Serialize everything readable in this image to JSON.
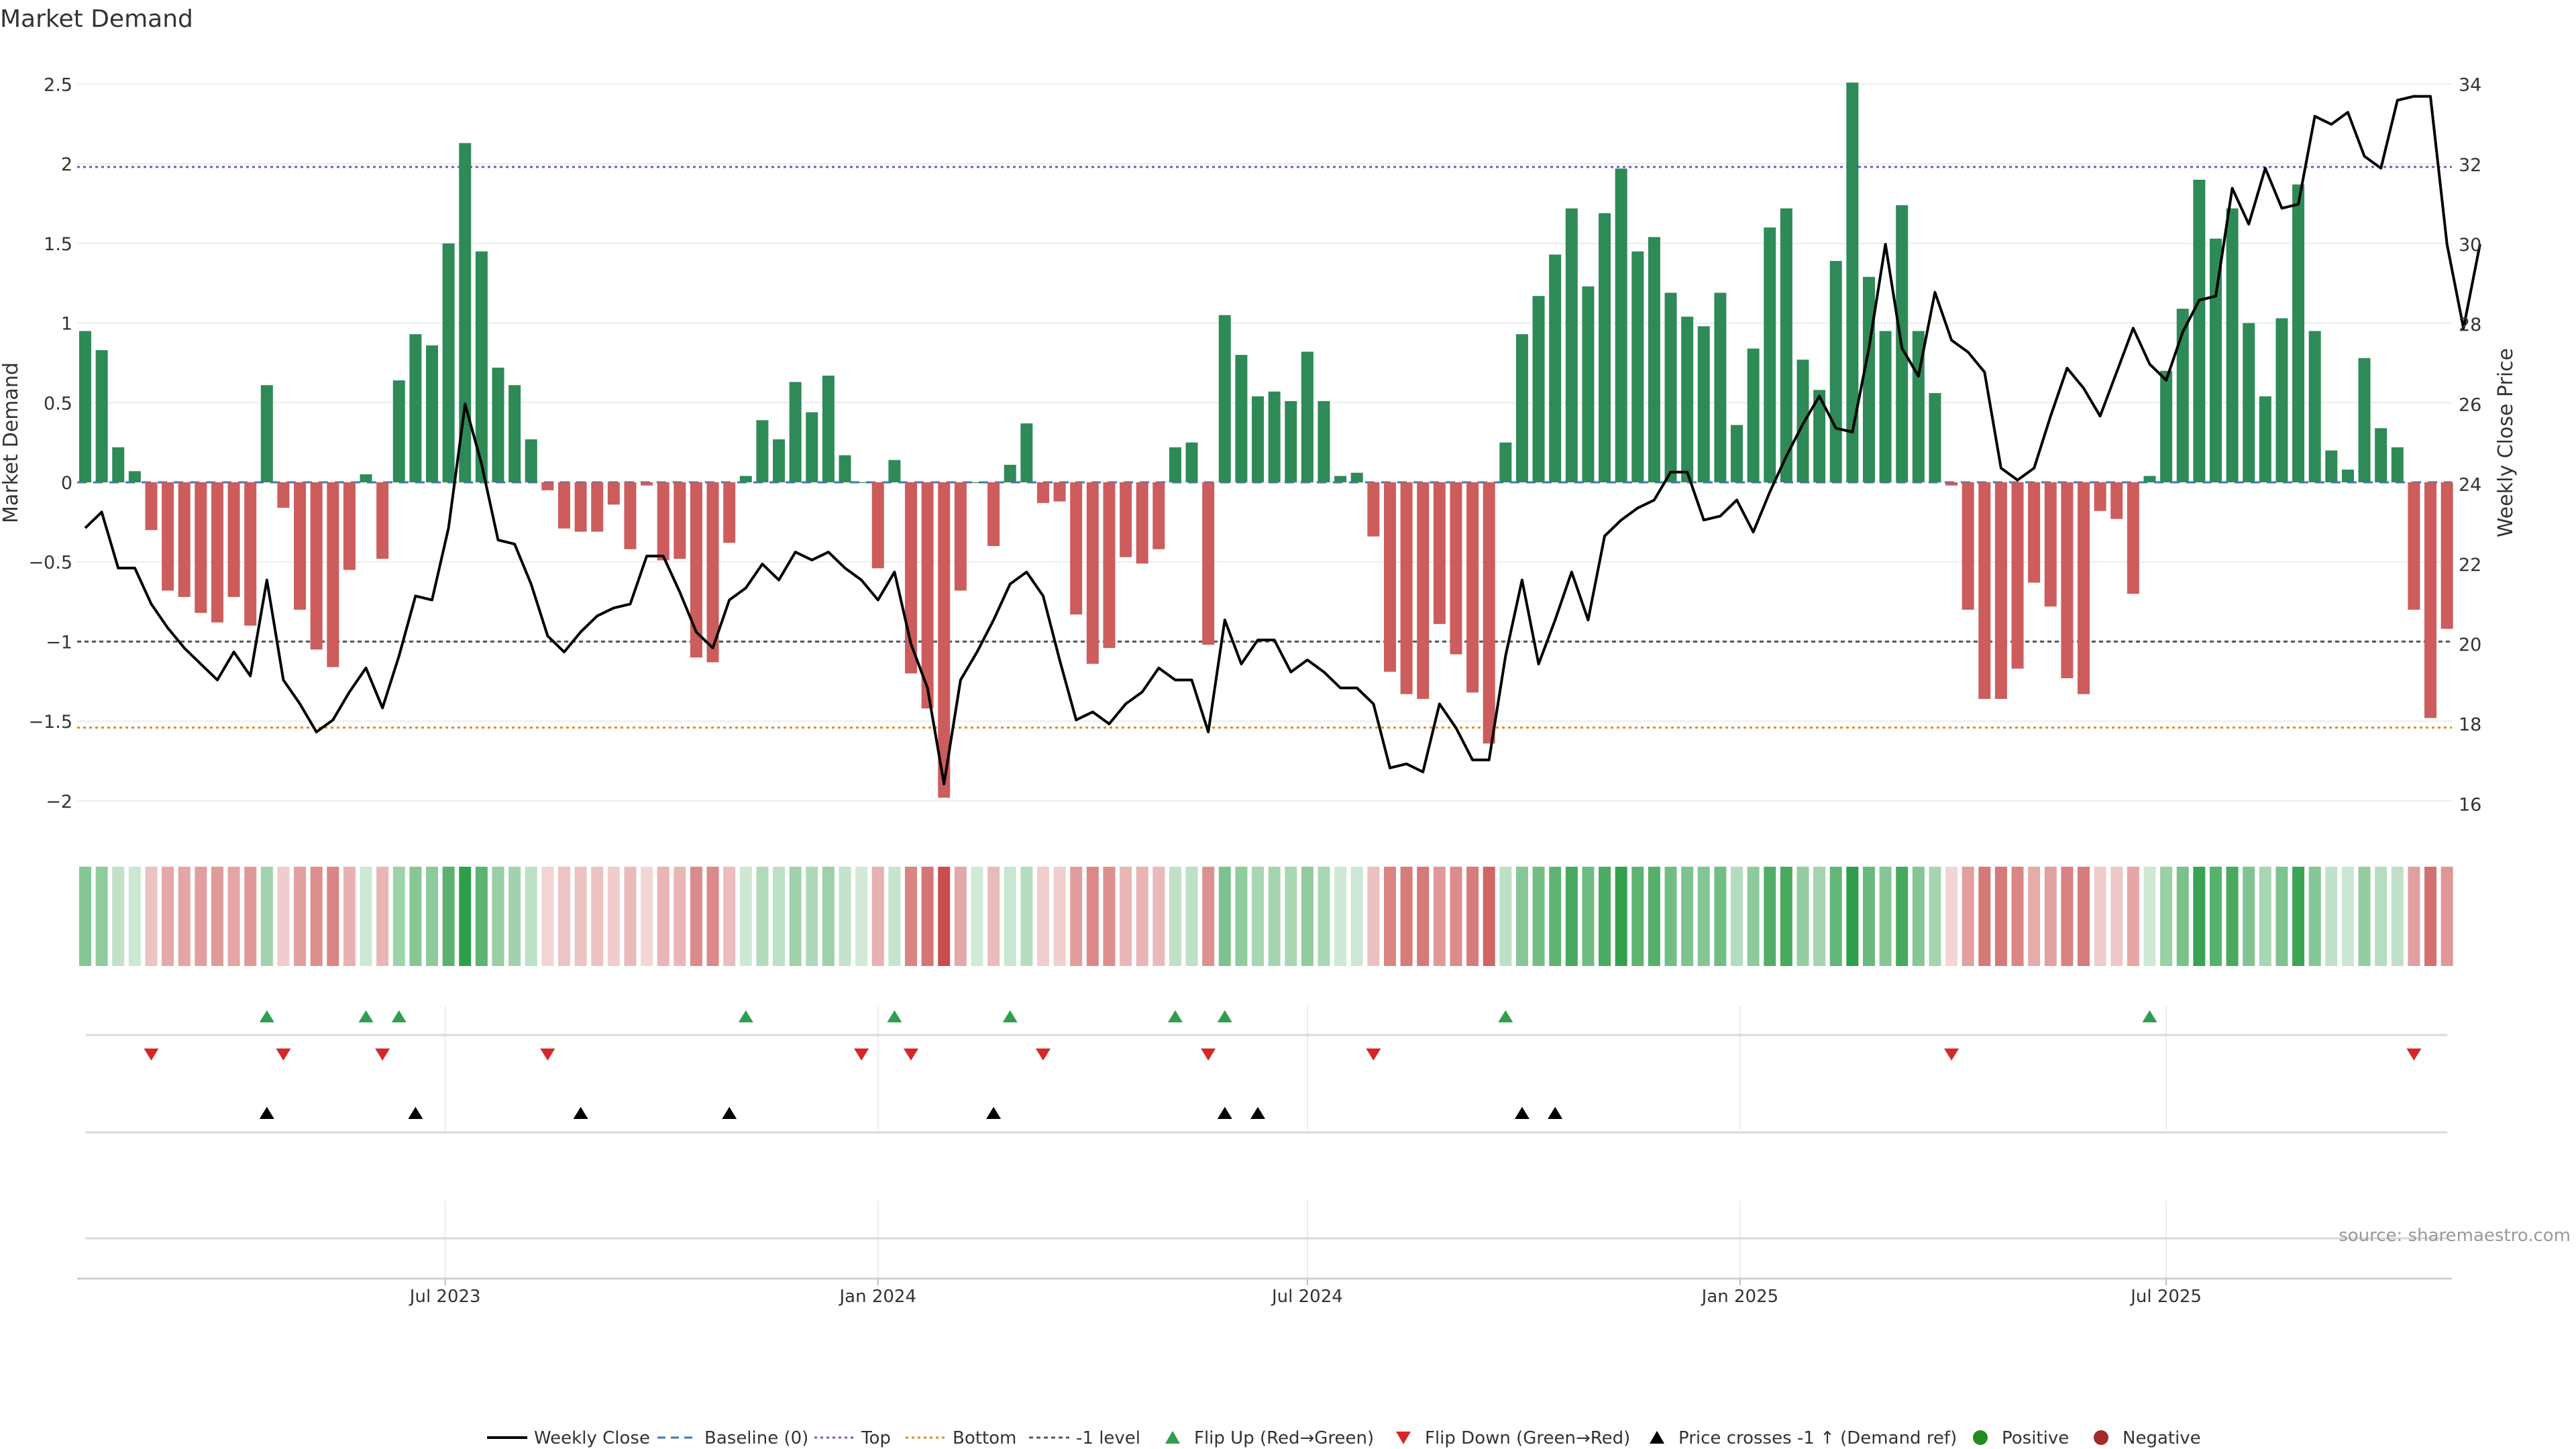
{
  "chart_data": {
    "type": "bar",
    "title": "Market Demand",
    "ylabel_left": "Market Demand",
    "ylabel_right": "Weekly Close Price",
    "source": "source: sharemaestro.com",
    "y_left_ticks": [
      "2.5",
      "2",
      "1.5",
      "1",
      "0.5",
      "0",
      "−0.5",
      "−1",
      "−1.5",
      "−2"
    ],
    "y_left_tick_values": [
      2.5,
      2,
      1.5,
      1,
      0.5,
      0,
      -0.5,
      -1,
      -1.5,
      -2
    ],
    "y_right_ticks": [
      "34",
      "32",
      "30",
      "28",
      "26",
      "24",
      "22",
      "20",
      "18",
      "16"
    ],
    "y_right_tick_values": [
      34,
      32,
      30,
      28,
      26,
      24,
      22,
      20,
      18,
      16
    ],
    "ylim_left": [
      -2.22,
      2.7
    ],
    "ylim_right": [
      15.2,
      34.8
    ],
    "x_tick_labels": [
      "Jul 2023",
      "Jan 2024",
      "Jul 2024",
      "Jan 2025",
      "Jul 2025"
    ],
    "x_tick_weeks": [
      21.8,
      48,
      74,
      100.2,
      126
    ],
    "reference_lines": {
      "top": 1.98,
      "bottom": -1.54,
      "minus_one": -1.0,
      "baseline": 0
    },
    "colors": {
      "positive": "#2e8a57",
      "negative": "#cd5c5c",
      "price": "#000000",
      "top": "#6a5acd",
      "bottom": "#e08a1e",
      "minus_one": "#555555",
      "baseline": "#3d7ab8",
      "flip_up": "#2e9e4f",
      "flip_down": "#d62728"
    },
    "demand": [
      0.95,
      0.83,
      0.22,
      0.07,
      -0.3,
      -0.68,
      -0.72,
      -0.82,
      -0.88,
      -0.72,
      -0.9,
      0.61,
      -0.16,
      -0.8,
      -1.05,
      -1.16,
      -0.55,
      0.05,
      -0.48,
      0.64,
      0.93,
      0.86,
      1.5,
      2.13,
      1.45,
      0.72,
      0.61,
      0.27,
      -0.05,
      -0.29,
      -0.31,
      -0.31,
      -0.14,
      -0.42,
      -0.02,
      -0.49,
      -0.48,
      -1.1,
      -1.13,
      -0.38,
      0.04,
      0.39,
      0.27,
      0.63,
      0.44,
      0.67,
      0.17,
      0.0,
      -0.54,
      0.14,
      -1.2,
      -1.42,
      -1.98,
      -0.68,
      0.0,
      -0.4,
      0.11,
      0.37,
      -0.13,
      -0.12,
      -0.83,
      -1.14,
      -1.04,
      -0.47,
      -0.51,
      -0.42,
      0.22,
      0.25,
      -1.02,
      1.05,
      0.8,
      0.54,
      0.57,
      0.51,
      0.82,
      0.51,
      0.04,
      0.06,
      -0.34,
      -1.19,
      -1.33,
      -1.36,
      -0.89,
      -1.08,
      -1.32,
      -1.64,
      0.25,
      0.93,
      1.17,
      1.43,
      1.72,
      1.23,
      1.69,
      1.97,
      1.45,
      1.54,
      1.19,
      1.04,
      0.98,
      1.19,
      0.36,
      0.84,
      1.6,
      1.72,
      0.77,
      0.58,
      1.39,
      2.51,
      1.29,
      0.95,
      1.74,
      0.95,
      0.56,
      -0.02,
      -0.8,
      -1.36,
      -1.36,
      -1.17,
      -0.63,
      -0.78,
      -1.23,
      -1.33,
      -0.18,
      -0.23,
      -0.7,
      0.04,
      0.7,
      1.09,
      1.9,
      1.53,
      1.72,
      1.0,
      0.54,
      1.03,
      1.87,
      0.95,
      0.2,
      0.08,
      0.78,
      0.34,
      0.22,
      -0.8,
      -1.48,
      -0.92
    ],
    "price": [
      22.9,
      23.3,
      21.9,
      21.9,
      21.0,
      20.4,
      19.9,
      19.5,
      19.1,
      19.8,
      19.2,
      21.6,
      19.1,
      18.5,
      17.8,
      18.1,
      18.8,
      19.4,
      18.4,
      19.7,
      21.2,
      21.1,
      22.9,
      26.0,
      24.5,
      22.6,
      22.5,
      21.5,
      20.2,
      19.8,
      20.3,
      20.7,
      20.9,
      21.0,
      22.2,
      22.2,
      21.3,
      20.3,
      19.9,
      21.1,
      21.4,
      22.0,
      21.6,
      22.3,
      22.1,
      22.3,
      21.9,
      21.6,
      21.1,
      21.8,
      20.0,
      18.9,
      16.5,
      19.1,
      19.8,
      20.6,
      21.5,
      21.8,
      21.2,
      19.6,
      18.1,
      18.3,
      18.0,
      18.5,
      18.8,
      19.4,
      19.1,
      19.1,
      17.8,
      20.6,
      19.5,
      20.1,
      20.1,
      19.3,
      19.6,
      19.3,
      18.9,
      18.9,
      18.5,
      16.9,
      17.0,
      16.8,
      18.5,
      17.9,
      17.1,
      17.1,
      19.7,
      21.6,
      19.5,
      20.6,
      21.8,
      20.6,
      22.7,
      23.1,
      23.4,
      23.6,
      24.3,
      24.3,
      23.1,
      23.2,
      23.6,
      22.8,
      23.8,
      24.7,
      25.5,
      26.2,
      25.4,
      25.3,
      27.4,
      30.0,
      27.4,
      26.7,
      28.8,
      27.6,
      27.3,
      26.8,
      24.4,
      24.1,
      24.4,
      25.7,
      26.9,
      26.4,
      25.7,
      26.8,
      27.9,
      27.0,
      26.6,
      27.8,
      28.6,
      28.7,
      31.4,
      30.5,
      31.9,
      30.9,
      31.0,
      33.2,
      33.0,
      33.3,
      32.2,
      31.9,
      33.6,
      33.7,
      33.7,
      30.0,
      27.9,
      30.0
    ],
    "flip_up_weeks": [
      11,
      17,
      19,
      40,
      49,
      56,
      66,
      69,
      86,
      125
    ],
    "flip_down_weeks": [
      4,
      12,
      18,
      28,
      47,
      50,
      58,
      68,
      78,
      113,
      141
    ],
    "price_cross_weeks": [
      11,
      20,
      30,
      39,
      55,
      69,
      71,
      87,
      89
    ],
    "legend": [
      "Weekly Close",
      "Baseline (0)",
      "Top",
      "Bottom",
      "-1 level",
      "Flip Up (Red→Green)",
      "Flip Down (Green→Red)",
      "Price crosses -1 ↑ (Demand ref)",
      "Positive",
      "Negative"
    ]
  }
}
